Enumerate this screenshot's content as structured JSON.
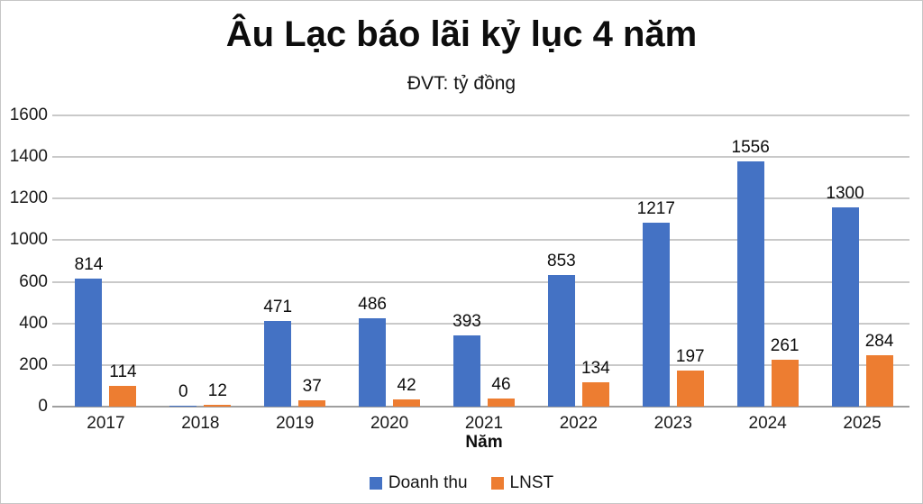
{
  "title": "Âu Lạc báo lãi kỷ lục 4 năm",
  "subtitle": "ĐVT: tỷ đồng",
  "chart_data": {
    "type": "bar",
    "categories": [
      "2017",
      "2018",
      "2019",
      "2020",
      "2021",
      "2022",
      "2023",
      "2024",
      "2025"
    ],
    "series": [
      {
        "name": "Doanh thu",
        "color": "#4472C4",
        "values": [
          814,
          0,
          471,
          486,
          393,
          853,
          1217,
          1556,
          1300
        ]
      },
      {
        "name": "LNST",
        "color": "#ED7D31",
        "values": [
          114,
          12,
          37,
          42,
          46,
          134,
          197,
          261,
          284
        ]
      }
    ],
    "title": "Âu Lạc báo lãi kỷ lục 4 năm",
    "subtitle": "ĐVT: tỷ đồng",
    "xlabel": "Năm",
    "ylabel": "",
    "y_tick_labels": [
      1600,
      1400,
      1200,
      1000,
      600,
      400,
      200,
      0
    ],
    "ylim": [
      0,
      1600
    ],
    "grid": true,
    "value_labels": true,
    "legend_position": "bottom",
    "colors": {
      "grid": "#c9c9c9",
      "axis": "#9f9f9f",
      "text": "#141414"
    }
  }
}
